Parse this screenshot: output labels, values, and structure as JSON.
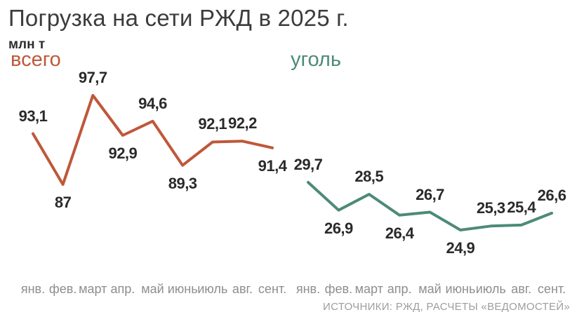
{
  "page": {
    "title": "Погрузка на сети РЖД в 2025 г.",
    "units_label": "млн т",
    "source": "ИСТОЧНИКИ: РЖД, РАСЧЕТЫ «ВЕДОМОСТЕЙ»"
  },
  "colors": {
    "total_line": "#be583a",
    "coal_line": "#4d8a79",
    "title_text": "#3c3c3c",
    "data_label": "#2a2a2a",
    "axis_label": "#8e8e8e",
    "source_text": "#9d9d9d",
    "background": "#ffffff"
  },
  "chart_data": [
    {
      "type": "line",
      "id": "total",
      "title": "всего",
      "units": "млн т",
      "categories": [
        "янв.",
        "фев.",
        "март",
        "апр.",
        "май",
        "июнь",
        "июль",
        "авг.",
        "сент."
      ],
      "values": [
        93.1,
        87,
        97.7,
        92.9,
        94.6,
        89.3,
        92.1,
        92.2,
        91.4
      ],
      "labels": [
        "93,1",
        "87",
        "97,7",
        "92,9",
        "94,6",
        "89,3",
        "92,1",
        "92,2",
        "91,4"
      ],
      "label_side": [
        "above",
        "below",
        "above",
        "below",
        "above",
        "below",
        "above",
        "above",
        "below"
      ],
      "color": "#be583a",
      "grid": false,
      "y_axis_shown": false,
      "value_range": [
        87,
        97.7
      ]
    },
    {
      "type": "line",
      "id": "coal",
      "title": "уголь",
      "units": "млн т",
      "categories": [
        "янв.",
        "фев.",
        "март",
        "апр.",
        "май",
        "июнь",
        "июль",
        "авг.",
        "сент."
      ],
      "values": [
        29.7,
        26.9,
        28.5,
        26.4,
        26.7,
        24.9,
        25.3,
        25.4,
        26.6
      ],
      "labels": [
        "29,7",
        "26,9",
        "28,5",
        "26,4",
        "26,7",
        "24,9",
        "25,3",
        "25,4",
        "26,6"
      ],
      "label_side": [
        "above",
        "below",
        "above",
        "below",
        "above",
        "below",
        "above",
        "above",
        "above"
      ],
      "color": "#4d8a79",
      "grid": false,
      "y_axis_shown": false,
      "value_range": [
        24.9,
        29.7
      ]
    }
  ]
}
